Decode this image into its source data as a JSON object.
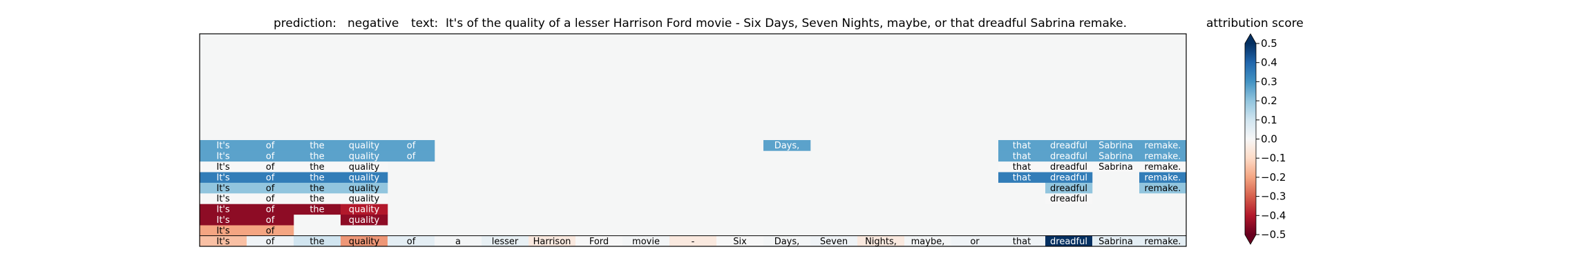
{
  "chart_data": {
    "type": "heatmap",
    "title": {
      "prediction_label": "prediction:",
      "prediction_value": "negative",
      "text_label": "text:",
      "text_value": "It's of the quality of a lesser Harrison Ford movie - Six Days, Seven Nights, maybe, or that dreadful Sabrina remake."
    },
    "colorbar": {
      "label": "attribution score",
      "range": [
        -0.5,
        0.5
      ],
      "ticks": [
        -0.5,
        -0.4,
        -0.3,
        -0.2,
        -0.1,
        0.0,
        0.1,
        0.2,
        0.3,
        0.4,
        0.5
      ],
      "tick_labels": [
        "−0.5",
        "−0.4",
        "−0.3",
        "−0.2",
        "−0.1",
        "0.0",
        "0.1",
        "0.2",
        "0.3",
        "0.4",
        "0.5"
      ],
      "colormap": "RdBu",
      "extend": "both"
    },
    "tokens": [
      "It's",
      "of",
      "the",
      "quality",
      "of",
      "a",
      "lesser",
      "Harrison",
      "Ford",
      "movie",
      "-",
      "Six",
      "Days,",
      "Seven",
      "Nights,",
      "maybe,",
      "or",
      "that",
      "dreadful",
      "Sabrina",
      "remake."
    ],
    "background_color": "#f5f6f6",
    "total_rows": 20,
    "rows": [
      [
        -0.2,
        -0.2,
        null,
        null,
        null,
        null,
        null,
        null,
        null,
        null,
        null,
        null,
        null,
        null,
        null,
        null,
        null,
        null,
        null,
        null,
        null
      ],
      [
        -0.45,
        -0.45,
        null,
        -0.45,
        null,
        null,
        null,
        null,
        null,
        null,
        null,
        null,
        null,
        null,
        null,
        null,
        null,
        null,
        null,
        null,
        null
      ],
      [
        -0.45,
        -0.45,
        -0.45,
        -0.4,
        null,
        null,
        null,
        null,
        null,
        null,
        null,
        null,
        null,
        null,
        null,
        null,
        null,
        null,
        null,
        null,
        null
      ],
      [
        0.0,
        0.0,
        0.0,
        0.0,
        null,
        null,
        null,
        null,
        null,
        null,
        null,
        null,
        null,
        null,
        null,
        null,
        null,
        null,
        0.0,
        null,
        null
      ],
      [
        0.2,
        0.2,
        0.2,
        0.2,
        null,
        null,
        null,
        null,
        null,
        null,
        null,
        null,
        null,
        null,
        null,
        null,
        null,
        null,
        0.2,
        null,
        0.2
      ],
      [
        0.35,
        0.35,
        0.35,
        0.35,
        null,
        null,
        null,
        null,
        null,
        null,
        null,
        null,
        null,
        null,
        null,
        null,
        null,
        0.35,
        0.35,
        null,
        0.35
      ],
      [
        0.0,
        0.0,
        0.0,
        0.0,
        null,
        null,
        null,
        null,
        null,
        null,
        null,
        null,
        null,
        null,
        null,
        null,
        null,
        0.0,
        0.0,
        0.0,
        0.0
      ],
      [
        0.27,
        0.27,
        0.27,
        0.27,
        0.27,
        null,
        null,
        null,
        null,
        null,
        null,
        null,
        null,
        null,
        null,
        null,
        null,
        0.27,
        0.27,
        0.27,
        0.27
      ],
      [
        0.27,
        0.27,
        0.27,
        0.27,
        0.27,
        null,
        null,
        null,
        null,
        null,
        null,
        null,
        0.27,
        null,
        null,
        null,
        null,
        0.27,
        0.27,
        0.27,
        0.27
      ]
    ],
    "final_row": [
      -0.15,
      0.02,
      0.1,
      -0.22,
      0.05,
      0.01,
      0.04,
      -0.05,
      0.0,
      0.01,
      -0.05,
      0.0,
      0.01,
      0.02,
      -0.05,
      0.01,
      0.02,
      0.02,
      0.5,
      0.05,
      0.05
    ]
  }
}
